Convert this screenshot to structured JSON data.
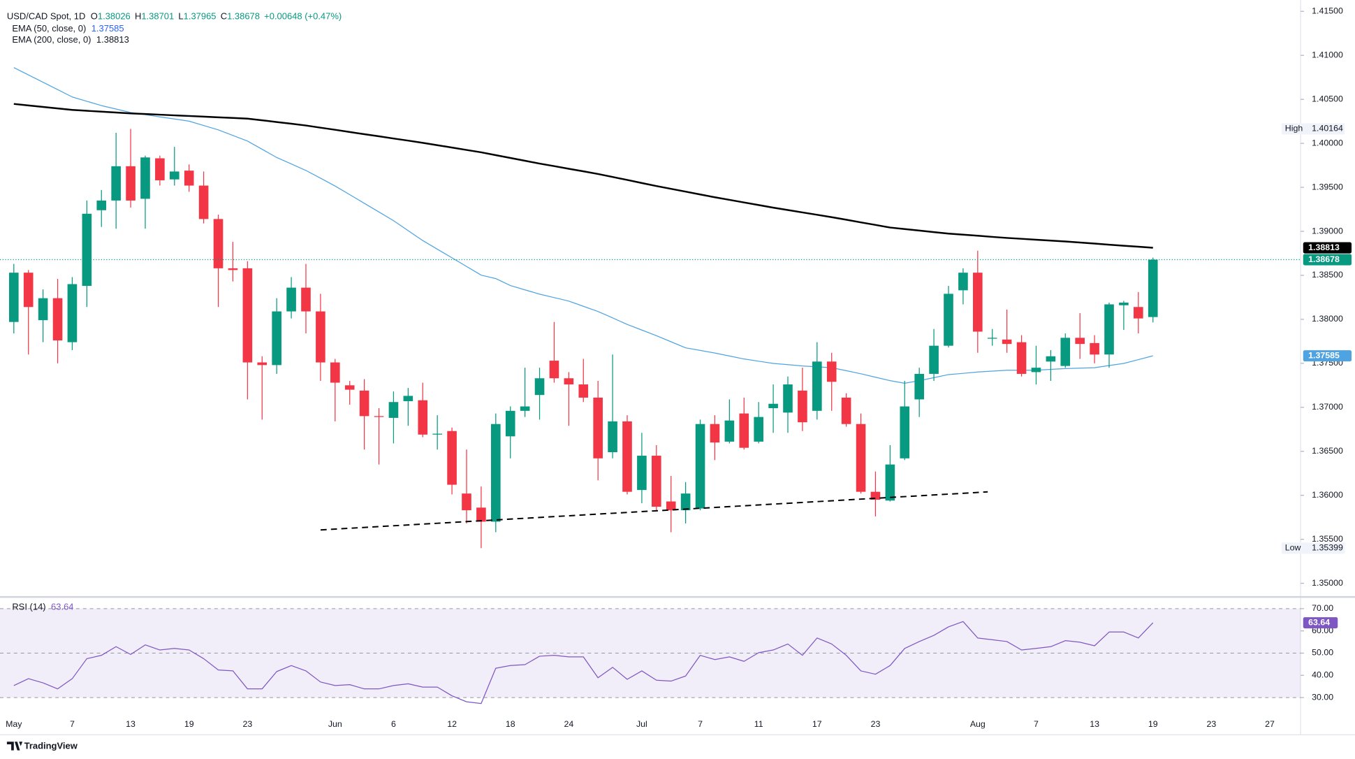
{
  "branding": "TradingView",
  "chart_data": [
    {
      "type": "candlestick",
      "title": "USD/CAD Spot, 1D",
      "ohlc_labels": [
        "O",
        "H",
        "L",
        "C"
      ],
      "change_label": "+0.00648 (+0.47%)",
      "high_label": "High",
      "low_label": "Low",
      "up_color": "#089981",
      "down_color": "#f23645",
      "categories": [
        "May",
        null,
        null,
        null,
        "7",
        null,
        null,
        null,
        "13",
        null,
        null,
        null,
        "19",
        null,
        null,
        null,
        "23",
        null,
        null,
        null,
        null,
        null,
        "Jun",
        null,
        null,
        null,
        "6",
        null,
        null,
        null,
        "12",
        null,
        null,
        null,
        "18",
        null,
        null,
        null,
        "24",
        null,
        null,
        null,
        null,
        "Jul",
        null,
        null,
        null,
        "7",
        null,
        null,
        null,
        "11",
        null,
        null,
        null,
        "17",
        null,
        null,
        null,
        "23",
        null,
        null,
        null,
        null,
        null,
        null,
        "Aug",
        null,
        null,
        null,
        "7",
        null,
        null,
        null,
        "13",
        null,
        null,
        null,
        "19",
        null,
        null,
        null,
        "23",
        null,
        null,
        null,
        "27"
      ],
      "open": [
        1.3797,
        1.3853,
        1.3799,
        1.3824,
        1.3774,
        1.3838,
        1.3924,
        1.3935,
        1.3974,
        1.3937,
        1.3983,
        1.3959,
        1.3969,
        1.3952,
        1.3914,
        1.3858,
        1.3858,
        1.3751,
        1.3748,
        1.3809,
        1.3836,
        1.3809,
        1.3751,
        1.3725,
        1.3719,
        1.369,
        1.3688,
        1.3707,
        1.3708,
        1.3669,
        1.3673,
        1.3602,
        1.3586,
        1.357,
        1.3667,
        1.3696,
        1.3714,
        1.3753,
        1.3733,
        1.3726,
        1.3711,
        1.3649,
        1.3684,
        1.3606,
        1.3645,
        1.3593,
        1.3583,
        1.3585,
        1.3681,
        1.3661,
        1.3693,
        1.3661,
        1.3699,
        1.3694,
        1.3719,
        1.3696,
        1.3752,
        1.3711,
        1.3681,
        1.3604,
        1.3594,
        1.3642,
        1.3709,
        1.3738,
        1.377,
        1.3833,
        1.3853,
        1.3778,
        1.3777,
        1.3774,
        1.374,
        1.3752,
        1.3747,
        1.3779,
        1.3773,
        1.376,
        1.3816,
        1.3814,
        1.38026,
        null,
        null,
        null,
        null,
        null,
        null,
        null,
        null
      ],
      "high": [
        1.3863,
        1.3856,
        1.3834,
        1.3846,
        1.3848,
        1.3935,
        1.3947,
        1.4012,
        1.40164,
        1.3986,
        1.3986,
        1.3996,
        1.3976,
        1.3968,
        1.3919,
        1.3888,
        1.3866,
        1.3758,
        1.3824,
        1.3848,
        1.3863,
        1.3829,
        1.3755,
        1.373,
        1.3732,
        1.3699,
        1.3718,
        1.3722,
        1.3728,
        1.3691,
        1.3677,
        1.3652,
        1.361,
        1.3693,
        1.3701,
        1.3745,
        1.3745,
        1.3797,
        1.374,
        1.3755,
        1.373,
        1.376,
        1.3691,
        1.3671,
        1.3657,
        1.3622,
        1.3615,
        1.3686,
        1.3691,
        1.3709,
        1.3711,
        1.3706,
        1.3726,
        1.3735,
        1.3745,
        1.3774,
        1.3762,
        1.3716,
        1.3693,
        1.3627,
        1.3657,
        1.373,
        1.3745,
        1.3789,
        1.3838,
        1.3858,
        1.3878,
        1.3789,
        1.3811,
        1.3782,
        1.377,
        1.3765,
        1.3784,
        1.3807,
        1.3782,
        1.3819,
        1.3821,
        1.3831,
        1.38701,
        null,
        null,
        null,
        null,
        null,
        null,
        null,
        null
      ],
      "low": [
        1.3784,
        1.376,
        1.3774,
        1.375,
        1.3765,
        1.3814,
        1.3905,
        1.3903,
        1.3927,
        1.3903,
        1.3952,
        1.3952,
        1.3945,
        1.3909,
        1.3814,
        1.3843,
        1.3709,
        1.3686,
        1.3738,
        1.3801,
        1.3784,
        1.373,
        1.3684,
        1.3703,
        1.3652,
        1.3635,
        1.3659,
        1.3679,
        1.3666,
        1.3652,
        1.3601,
        1.3568,
        1.35399,
        1.3558,
        1.3642,
        1.3689,
        1.3686,
        1.3728,
        1.3679,
        1.3706,
        1.3617,
        1.3642,
        1.3601,
        1.3591,
        1.3583,
        1.3558,
        1.3568,
        1.3583,
        1.364,
        1.3659,
        1.3652,
        1.3659,
        1.3671,
        1.3671,
        1.3673,
        1.3686,
        1.3696,
        1.3678,
        1.3602,
        1.3576,
        1.3593,
        1.364,
        1.3689,
        1.373,
        1.3768,
        1.3817,
        1.3762,
        1.377,
        1.3762,
        1.3735,
        1.3726,
        1.373,
        1.3745,
        1.3755,
        1.375,
        1.3745,
        1.3788,
        1.3784,
        1.37965,
        null,
        null,
        null,
        null,
        null,
        null,
        null,
        null
      ],
      "close": [
        1.3853,
        1.3814,
        1.3824,
        1.3776,
        1.384,
        1.392,
        1.3935,
        1.3974,
        1.3935,
        1.3984,
        1.3958,
        1.3968,
        1.3952,
        1.3914,
        1.3858,
        1.3856,
        1.3751,
        1.3748,
        1.3809,
        1.3836,
        1.3809,
        1.3751,
        1.3728,
        1.372,
        1.369,
        1.3689,
        1.3706,
        1.3713,
        1.3669,
        1.367,
        1.3612,
        1.3583,
        1.357,
        1.3681,
        1.3696,
        1.3701,
        1.3733,
        1.3733,
        1.3726,
        1.3711,
        1.3642,
        1.3684,
        1.3604,
        1.3645,
        1.3587,
        1.3583,
        1.3602,
        1.3681,
        1.366,
        1.3685,
        1.3654,
        1.3689,
        1.3704,
        1.3726,
        1.3683,
        1.3752,
        1.3729,
        1.3681,
        1.3604,
        1.3595,
        1.3635,
        1.3701,
        1.3738,
        1.377,
        1.3829,
        1.3853,
        1.3786,
        1.3779,
        1.3772,
        1.3738,
        1.3745,
        1.3758,
        1.3779,
        1.3772,
        1.376,
        1.3817,
        1.3819,
        1.3801,
        1.38678,
        null,
        null,
        null,
        null,
        null,
        null,
        null,
        null
      ],
      "series": [
        {
          "name": "EMA (50, close, 0)",
          "color": "#4fa3e0",
          "values": [
            1.40861,
            1.40778,
            1.40694,
            1.40611,
            1.40527,
            1.40478,
            1.40429,
            1.4039,
            1.4035,
            1.40326,
            1.40301,
            1.40277,
            1.40252,
            1.40203,
            1.40153,
            1.4009,
            1.40026,
            1.39933,
            1.39839,
            1.39766,
            1.39692,
            1.39604,
            1.39515,
            1.39417,
            1.39318,
            1.3922,
            1.39121,
            1.39008,
            1.38895,
            1.38797,
            1.38699,
            1.38601,
            1.38502,
            1.38463,
            1.38384,
            1.38335,
            1.38286,
            1.38247,
            1.38207,
            1.38148,
            1.38089,
            1.38016,
            1.37942,
            1.37878,
            1.37814,
            1.37745,
            1.37676,
            1.37647,
            1.37617,
            1.37583,
            1.37549,
            1.37524,
            1.37499,
            1.37485,
            1.3747,
            1.3746,
            1.3745,
            1.37416,
            1.37381,
            1.37342,
            1.37303,
            1.37273,
            1.37303,
            1.37337,
            1.37372,
            1.37386,
            1.37401,
            1.37411,
            1.37421,
            1.37421,
            1.37421,
            1.37431,
            1.3744,
            1.37445,
            1.3745,
            1.37475,
            1.37499,
            1.37542,
            1.37585,
            null,
            null,
            null,
            null,
            null,
            null,
            null,
            null
          ]
        },
        {
          "name": "EMA (200, close, 0)",
          "color": "#000000",
          "values": [
            1.40448,
            1.40431,
            1.40414,
            1.40397,
            1.4038,
            1.4037,
            1.4036,
            1.4035,
            1.4034,
            1.40333,
            1.40326,
            1.40318,
            1.40311,
            1.40304,
            1.40296,
            1.40289,
            1.40281,
            1.40262,
            1.40242,
            1.40223,
            1.40203,
            1.40178,
            1.40154,
            1.40129,
            1.40104,
            1.4008,
            1.40055,
            1.40031,
            1.40006,
            1.39979,
            1.39952,
            1.39925,
            1.39898,
            1.39866,
            1.39834,
            1.39802,
            1.3977,
            1.39741,
            1.39711,
            1.39682,
            1.39652,
            1.39618,
            1.39584,
            1.39549,
            1.39515,
            1.39483,
            1.39451,
            1.39419,
            1.39387,
            1.39358,
            1.39328,
            1.39299,
            1.39269,
            1.39242,
            1.39215,
            1.39188,
            1.39161,
            1.39132,
            1.39102,
            1.39073,
            1.39043,
            1.39026,
            1.39009,
            1.38991,
            1.38974,
            1.38962,
            1.3895,
            1.38937,
            1.38925,
            1.38915,
            1.38905,
            1.38895,
            1.38885,
            1.38873,
            1.38861,
            1.38848,
            1.38836,
            1.38825,
            1.38813,
            null,
            null,
            null,
            null,
            null,
            null,
            null,
            null
          ]
        }
      ],
      "ylim": [
        1.3485,
        1.4158
      ],
      "yticks": [
        {
          "value": 1.35,
          "label": "1.35000"
        },
        {
          "value": 1.355,
          "label": "1.35500"
        },
        {
          "value": 1.36,
          "label": "1.36000"
        },
        {
          "value": 1.365,
          "label": "1.36500"
        },
        {
          "value": 1.37,
          "label": "1.37000"
        },
        {
          "value": 1.375,
          "label": "1.37500"
        },
        {
          "value": 1.38,
          "label": "1.38000"
        },
        {
          "value": 1.385,
          "label": "1.38500"
        },
        {
          "value": 1.39,
          "label": "1.39000"
        },
        {
          "value": 1.395,
          "label": "1.39500"
        },
        {
          "value": 1.4,
          "label": "1.40000"
        },
        {
          "value": 1.405,
          "label": "1.40500"
        },
        {
          "value": 1.41,
          "label": "1.41000"
        },
        {
          "value": 1.415,
          "label": "1.41500"
        }
      ]
    },
    {
      "type": "line",
      "series": [
        {
          "name": "RSI (14)",
          "color": "#7e57c2",
          "values": [
            35.4,
            38.5,
            36.6,
            33.9,
            38.5,
            47.5,
            49.0,
            52.9,
            49.4,
            53.7,
            51.4,
            52.1,
            51.4,
            47.5,
            42.4,
            42.0,
            33.9,
            33.9,
            41.7,
            44.4,
            42.0,
            37.0,
            35.4,
            35.8,
            33.9,
            33.9,
            35.4,
            36.2,
            34.7,
            34.7,
            30.8,
            28.1,
            27.3,
            43.2,
            44.4,
            44.8,
            48.6,
            49.0,
            48.3,
            48.3,
            38.9,
            43.6,
            38.2,
            42.0,
            37.8,
            37.4,
            39.7,
            49.0,
            47.1,
            48.3,
            46.3,
            50.2,
            51.4,
            54.1,
            49.0,
            56.8,
            54.1,
            49.0,
            42.0,
            40.5,
            44.4,
            52.1,
            55.2,
            58.0,
            61.8,
            64.2,
            56.8,
            56.0,
            55.2,
            51.4,
            52.1,
            52.9,
            55.6,
            54.9,
            53.3,
            59.5,
            59.5,
            56.8,
            63.64,
            null,
            null,
            null,
            null,
            null,
            null,
            null,
            null
          ]
        }
      ],
      "levels": [
        30,
        50,
        70
      ],
      "ylim": [
        21.8,
        74.7
      ],
      "yticks": [
        {
          "value": 30,
          "label": "30.00"
        },
        {
          "value": 40,
          "label": "40.00"
        },
        {
          "value": 50,
          "label": "50.00"
        },
        {
          "value": 60,
          "label": "60.00"
        },
        {
          "value": 70,
          "label": "70.00"
        }
      ]
    }
  ]
}
